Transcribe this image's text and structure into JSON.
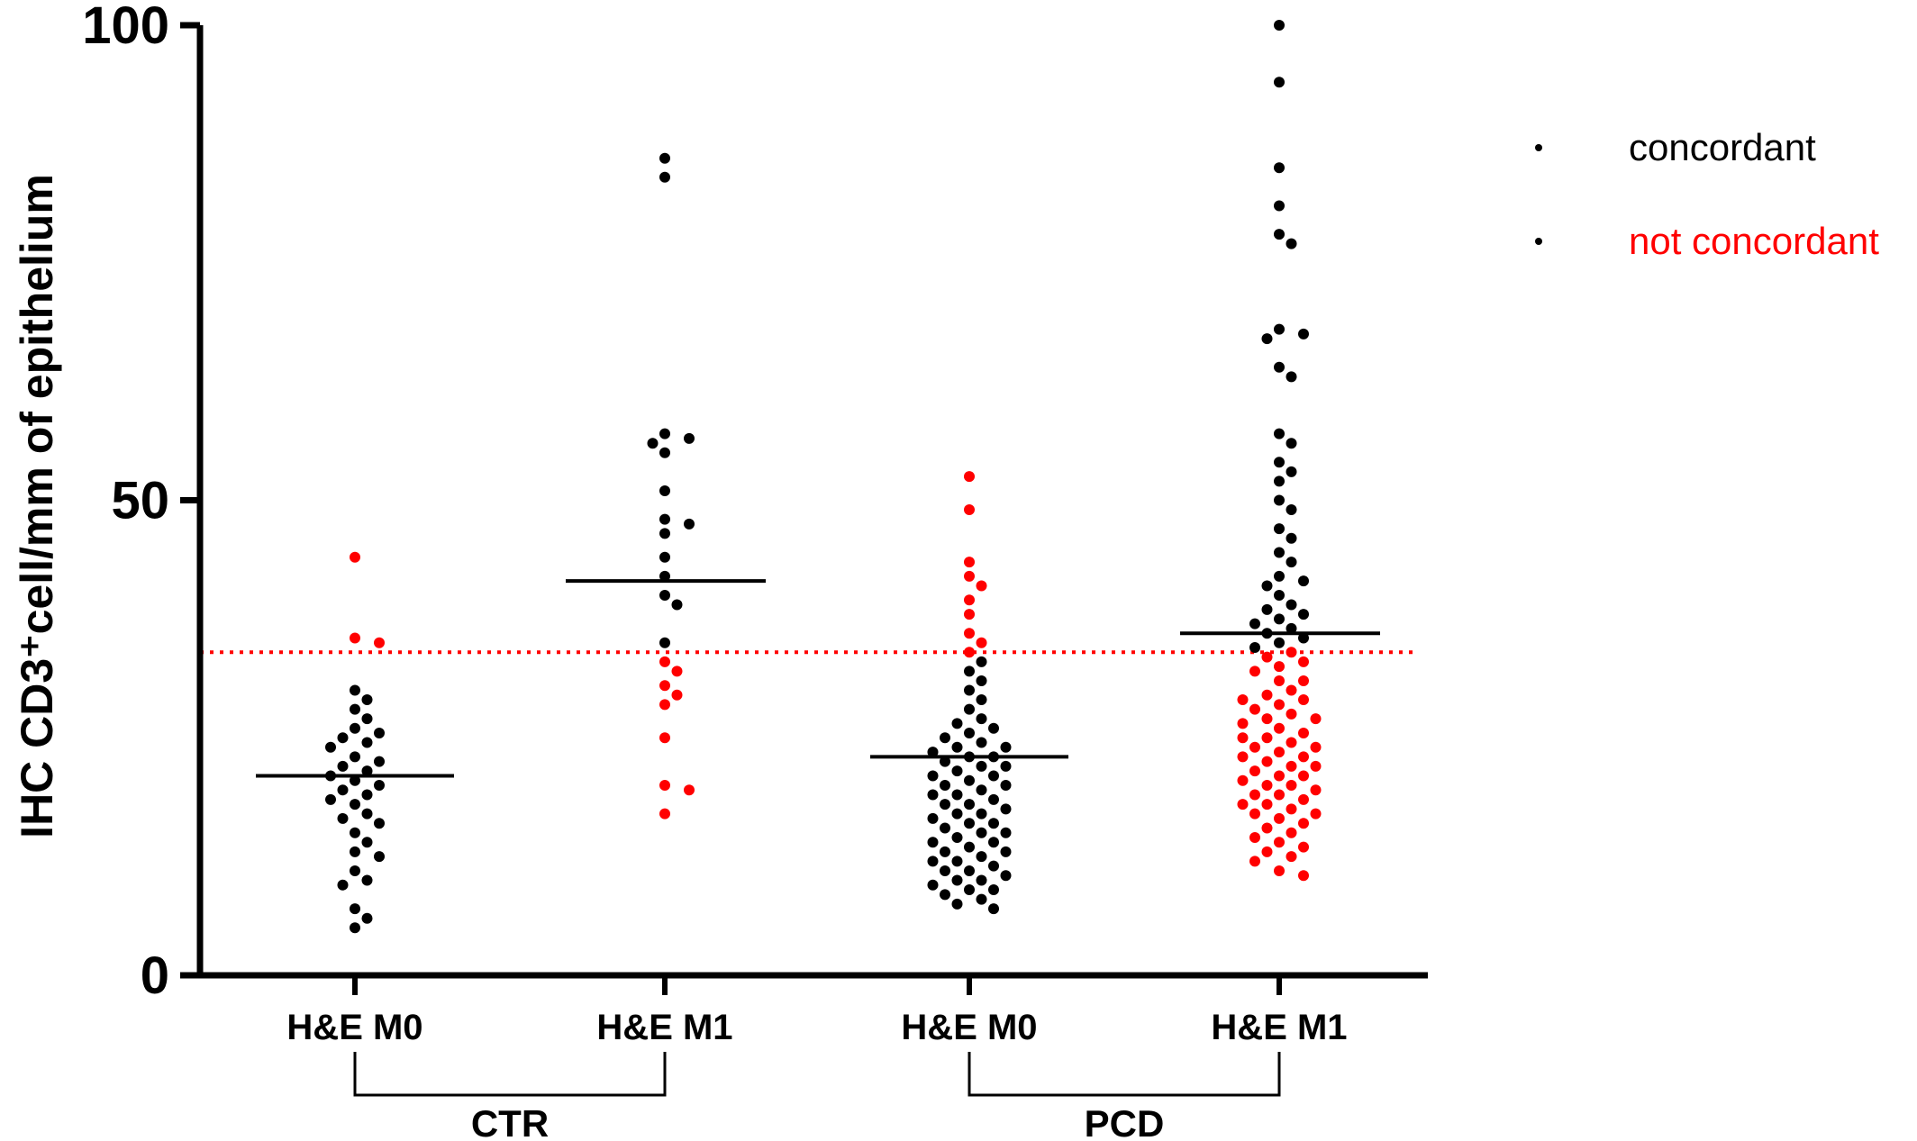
{
  "chart_data": {
    "type": "scatter",
    "ylabel": "IHC CD3⁺cell/mm of epithelium",
    "ylim": [
      0,
      100
    ],
    "yticks": [
      "0",
      "50",
      "100"
    ],
    "categories": [
      "H&E M0",
      "H&E M1",
      "H&E M0",
      "H&E M1"
    ],
    "groups": [
      {
        "label": "CTR",
        "categories": [
          0,
          1
        ]
      },
      {
        "label": "PCD",
        "categories": [
          2,
          3
        ]
      }
    ],
    "threshold": {
      "value": 34,
      "color": "#ff0000",
      "style": "dotted"
    },
    "colors": {
      "concordant": "#000000",
      "not_concordant": "#ff0000"
    },
    "legend": {
      "position": "top-right",
      "items": [
        {
          "label": "concordant",
          "text_color": "#000000"
        },
        {
          "label": "not concordant",
          "text_color": "#ff0000"
        }
      ]
    },
    "series": [
      {
        "category": "H&E M0",
        "group": "CTR",
        "mean": 21,
        "points": [
          {
            "y": 44,
            "c": 0
          },
          {
            "y": 35.5,
            "c": 0
          },
          {
            "y": 35,
            "c": 0
          },
          {
            "y": 30,
            "c": 1
          },
          {
            "y": 29,
            "c": 1
          },
          {
            "y": 28,
            "c": 1
          },
          {
            "y": 27,
            "c": 1
          },
          {
            "y": 26,
            "c": 1
          },
          {
            "y": 25.5,
            "c": 1
          },
          {
            "y": 25,
            "c": 1
          },
          {
            "y": 24.5,
            "c": 1
          },
          {
            "y": 24,
            "c": 1
          },
          {
            "y": 23,
            "c": 1
          },
          {
            "y": 22.5,
            "c": 1
          },
          {
            "y": 22,
            "c": 1
          },
          {
            "y": 21.5,
            "c": 1
          },
          {
            "y": 21,
            "c": 1
          },
          {
            "y": 20.5,
            "c": 1
          },
          {
            "y": 20,
            "c": 1
          },
          {
            "y": 19.5,
            "c": 1
          },
          {
            "y": 19,
            "c": 1
          },
          {
            "y": 18.5,
            "c": 1
          },
          {
            "y": 18,
            "c": 1
          },
          {
            "y": 17,
            "c": 1
          },
          {
            "y": 16.5,
            "c": 1
          },
          {
            "y": 16,
            "c": 1
          },
          {
            "y": 15,
            "c": 1
          },
          {
            "y": 14,
            "c": 1
          },
          {
            "y": 13,
            "c": 1
          },
          {
            "y": 12.5,
            "c": 1
          },
          {
            "y": 11,
            "c": 1
          },
          {
            "y": 10,
            "c": 1
          },
          {
            "y": 9.5,
            "c": 1
          },
          {
            "y": 7,
            "c": 1
          },
          {
            "y": 6,
            "c": 1
          },
          {
            "y": 5,
            "c": 1
          }
        ]
      },
      {
        "category": "H&E M1",
        "group": "CTR",
        "mean": 41.5,
        "points": [
          {
            "y": 86,
            "c": 1
          },
          {
            "y": 84,
            "c": 1
          },
          {
            "y": 57,
            "c": 1
          },
          {
            "y": 56.5,
            "c": 1
          },
          {
            "y": 56,
            "c": 1
          },
          {
            "y": 55,
            "c": 1
          },
          {
            "y": 51,
            "c": 1
          },
          {
            "y": 48,
            "c": 1
          },
          {
            "y": 47.5,
            "c": 1
          },
          {
            "y": 46.5,
            "c": 1
          },
          {
            "y": 44,
            "c": 1
          },
          {
            "y": 42,
            "c": 1
          },
          {
            "y": 40,
            "c": 1
          },
          {
            "y": 39,
            "c": 1
          },
          {
            "y": 35,
            "c": 1
          },
          {
            "y": 33,
            "c": 0
          },
          {
            "y": 32,
            "c": 0
          },
          {
            "y": 30.5,
            "c": 0
          },
          {
            "y": 29.5,
            "c": 0
          },
          {
            "y": 28.5,
            "c": 0
          },
          {
            "y": 25,
            "c": 0
          },
          {
            "y": 20,
            "c": 0
          },
          {
            "y": 19.5,
            "c": 0
          },
          {
            "y": 17,
            "c": 0
          }
        ]
      },
      {
        "category": "H&E M0",
        "group": "PCD",
        "mean": 23,
        "points": [
          {
            "y": 52.5,
            "c": 0
          },
          {
            "y": 49,
            "c": 0
          },
          {
            "y": 43.5,
            "c": 0
          },
          {
            "y": 42,
            "c": 0
          },
          {
            "y": 41,
            "c": 0
          },
          {
            "y": 39.5,
            "c": 0
          },
          {
            "y": 38,
            "c": 0
          },
          {
            "y": 36,
            "c": 0
          },
          {
            "y": 35,
            "c": 0
          },
          {
            "y": 34,
            "c": 0
          },
          {
            "y": 33,
            "c": 1
          },
          {
            "y": 32,
            "c": 1
          },
          {
            "y": 31,
            "c": 1
          },
          {
            "y": 30,
            "c": 1
          },
          {
            "y": 29,
            "c": 1
          },
          {
            "y": 28,
            "c": 1
          },
          {
            "y": 27,
            "c": 1
          },
          {
            "y": 26.5,
            "c": 1
          },
          {
            "y": 26,
            "c": 1
          },
          {
            "y": 25.5,
            "c": 1
          },
          {
            "y": 25,
            "c": 1
          },
          {
            "y": 24.5,
            "c": 1
          },
          {
            "y": 24,
            "c": 1
          },
          {
            "y": 23.5,
            "c": 1
          },
          {
            "y": 23,
            "c": 1
          },
          {
            "y": 22.5,
            "c": 1
          },
          {
            "y": 22,
            "c": 1
          },
          {
            "y": 21.5,
            "c": 1
          },
          {
            "y": 21,
            "c": 1
          },
          {
            "y": 20.5,
            "c": 1
          },
          {
            "y": 20,
            "c": 1
          },
          {
            "y": 19.5,
            "c": 1
          },
          {
            "y": 19,
            "c": 1
          },
          {
            "y": 18.5,
            "c": 1
          },
          {
            "y": 18,
            "c": 1
          },
          {
            "y": 17.5,
            "c": 1
          },
          {
            "y": 17,
            "c": 1
          },
          {
            "y": 16.5,
            "c": 1
          },
          {
            "y": 16,
            "c": 1
          },
          {
            "y": 15.5,
            "c": 1
          },
          {
            "y": 15,
            "c": 1
          },
          {
            "y": 14.5,
            "c": 1
          },
          {
            "y": 14,
            "c": 1
          },
          {
            "y": 13.5,
            "c": 1
          },
          {
            "y": 13,
            "c": 1
          },
          {
            "y": 12.5,
            "c": 1
          },
          {
            "y": 12,
            "c": 1
          },
          {
            "y": 11.5,
            "c": 1
          },
          {
            "y": 11,
            "c": 1
          },
          {
            "y": 10.5,
            "c": 1
          },
          {
            "y": 10,
            "c": 1
          },
          {
            "y": 9.5,
            "c": 1
          },
          {
            "y": 9,
            "c": 1
          },
          {
            "y": 8.5,
            "c": 1
          },
          {
            "y": 8,
            "c": 1
          },
          {
            "y": 7.5,
            "c": 1
          },
          {
            "y": 7,
            "c": 1
          },
          {
            "y": 24,
            "c": 1
          },
          {
            "y": 22,
            "c": 1
          },
          {
            "y": 20,
            "c": 1
          },
          {
            "y": 18,
            "c": 1
          },
          {
            "y": 16,
            "c": 1
          },
          {
            "y": 14,
            "c": 1
          },
          {
            "y": 12,
            "c": 1
          },
          {
            "y": 10,
            "c": 1
          },
          {
            "y": 23,
            "c": 1
          },
          {
            "y": 21,
            "c": 1
          },
          {
            "y": 19,
            "c": 1
          },
          {
            "y": 17,
            "c": 1
          },
          {
            "y": 15,
            "c": 1
          },
          {
            "y": 13,
            "c": 1
          },
          {
            "y": 11,
            "c": 1
          },
          {
            "y": 9,
            "c": 1
          }
        ]
      },
      {
        "category": "H&E M1",
        "group": "PCD",
        "mean": 36,
        "points": [
          {
            "y": 100,
            "c": 1
          },
          {
            "y": 94,
            "c": 1
          },
          {
            "y": 85,
            "c": 1
          },
          {
            "y": 81,
            "c": 1
          },
          {
            "y": 78,
            "c": 1
          },
          {
            "y": 77,
            "c": 1
          },
          {
            "y": 68,
            "c": 1
          },
          {
            "y": 67.5,
            "c": 1
          },
          {
            "y": 67,
            "c": 1
          },
          {
            "y": 64,
            "c": 1
          },
          {
            "y": 63,
            "c": 1
          },
          {
            "y": 57,
            "c": 1
          },
          {
            "y": 56,
            "c": 1
          },
          {
            "y": 54,
            "c": 1
          },
          {
            "y": 53,
            "c": 1
          },
          {
            "y": 52,
            "c": 1
          },
          {
            "y": 50,
            "c": 1
          },
          {
            "y": 49,
            "c": 1
          },
          {
            "y": 47,
            "c": 1
          },
          {
            "y": 46,
            "c": 1
          },
          {
            "y": 44.5,
            "c": 1
          },
          {
            "y": 43.5,
            "c": 1
          },
          {
            "y": 42,
            "c": 1
          },
          {
            "y": 41.5,
            "c": 1
          },
          {
            "y": 41,
            "c": 1
          },
          {
            "y": 40,
            "c": 1
          },
          {
            "y": 39,
            "c": 1
          },
          {
            "y": 38.5,
            "c": 1
          },
          {
            "y": 38,
            "c": 1
          },
          {
            "y": 37.5,
            "c": 1
          },
          {
            "y": 37,
            "c": 1
          },
          {
            "y": 36.5,
            "c": 1
          },
          {
            "y": 36,
            "c": 1
          },
          {
            "y": 35.5,
            "c": 1
          },
          {
            "y": 35,
            "c": 1
          },
          {
            "y": 34.5,
            "c": 1
          },
          {
            "y": 34,
            "c": 0
          },
          {
            "y": 33.5,
            "c": 0
          },
          {
            "y": 33,
            "c": 0
          },
          {
            "y": 32.5,
            "c": 0
          },
          {
            "y": 32,
            "c": 0
          },
          {
            "y": 31,
            "c": 0
          },
          {
            "y": 30,
            "c": 0
          },
          {
            "y": 29.5,
            "c": 0
          },
          {
            "y": 29,
            "c": 0
          },
          {
            "y": 28.5,
            "c": 0
          },
          {
            "y": 28,
            "c": 0
          },
          {
            "y": 27.5,
            "c": 0
          },
          {
            "y": 27,
            "c": 0
          },
          {
            "y": 26.5,
            "c": 0
          },
          {
            "y": 26,
            "c": 0
          },
          {
            "y": 25.5,
            "c": 0
          },
          {
            "y": 25,
            "c": 0
          },
          {
            "y": 24.5,
            "c": 0
          },
          {
            "y": 24,
            "c": 0
          },
          {
            "y": 23.5,
            "c": 0
          },
          {
            "y": 23,
            "c": 0
          },
          {
            "y": 22.5,
            "c": 0
          },
          {
            "y": 22,
            "c": 0
          },
          {
            "y": 21.5,
            "c": 0
          },
          {
            "y": 21,
            "c": 0
          },
          {
            "y": 20.5,
            "c": 0
          },
          {
            "y": 20,
            "c": 0
          },
          {
            "y": 19.5,
            "c": 0
          },
          {
            "y": 19,
            "c": 0
          },
          {
            "y": 18.5,
            "c": 0
          },
          {
            "y": 18,
            "c": 0
          },
          {
            "y": 17.5,
            "c": 0
          },
          {
            "y": 17,
            "c": 0
          },
          {
            "y": 16.5,
            "c": 0
          },
          {
            "y": 16,
            "c": 0
          },
          {
            "y": 15.5,
            "c": 0
          },
          {
            "y": 15,
            "c": 0
          },
          {
            "y": 14.5,
            "c": 0
          },
          {
            "y": 14,
            "c": 0
          },
          {
            "y": 13.5,
            "c": 0
          },
          {
            "y": 13,
            "c": 0
          },
          {
            "y": 12.5,
            "c": 0
          },
          {
            "y": 12,
            "c": 0
          },
          {
            "y": 11,
            "c": 0
          },
          {
            "y": 10.5,
            "c": 0
          },
          {
            "y": 31,
            "c": 0
          },
          {
            "y": 29,
            "c": 0
          },
          {
            "y": 27,
            "c": 0
          },
          {
            "y": 25,
            "c": 0
          },
          {
            "y": 23,
            "c": 0
          },
          {
            "y": 21,
            "c": 0
          },
          {
            "y": 19,
            "c": 0
          },
          {
            "y": 17,
            "c": 0
          },
          {
            "y": 24,
            "c": 0
          },
          {
            "y": 22,
            "c": 0
          },
          {
            "y": 20,
            "c": 0
          },
          {
            "y": 18,
            "c": 0
          }
        ]
      }
    ]
  }
}
